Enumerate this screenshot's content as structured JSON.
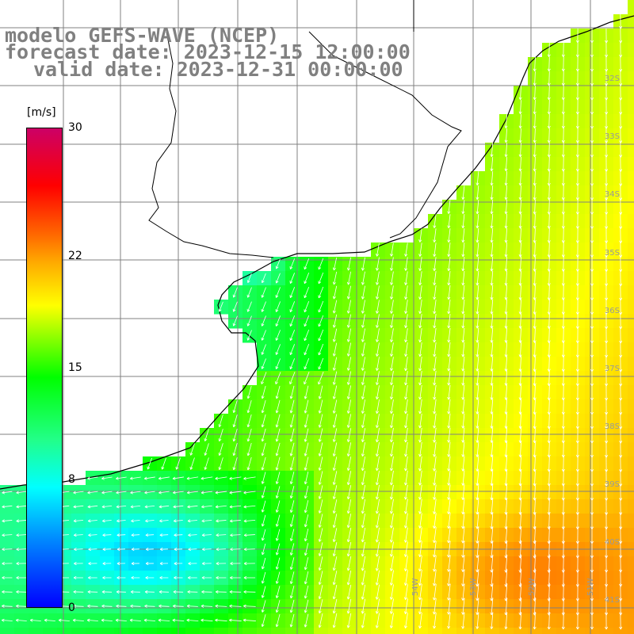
{
  "title": {
    "line1": "modelo GEFS-WAVE (NCEP)",
    "line2": "forecast date: 2023-12-15 12:00:00",
    "line3": "valid date: 2023-12-31 00:00:00"
  },
  "colorbar": {
    "units": "[m/s]",
    "ticks": [
      {
        "value": 30,
        "label": "30"
      },
      {
        "value": 22,
        "label": "22"
      },
      {
        "value": 15,
        "label": "15"
      },
      {
        "value": 8,
        "label": "8"
      },
      {
        "value": 0,
        "label": "0"
      }
    ],
    "colors": [
      "#0000ff",
      "#0088ff",
      "#00ffff",
      "#22ff88",
      "#00ff00",
      "#88ff00",
      "#ffff00",
      "#ffaa00",
      "#ff6600",
      "#ff0000",
      "#cc0066"
    ]
  },
  "map": {
    "lat_labels": [
      "32S",
      "33S",
      "34S",
      "35S",
      "36S",
      "37S",
      "38S",
      "39S",
      "40S",
      "41S"
    ],
    "lon_labels": [
      "54W",
      "53W",
      "52W",
      "51W"
    ]
  }
}
